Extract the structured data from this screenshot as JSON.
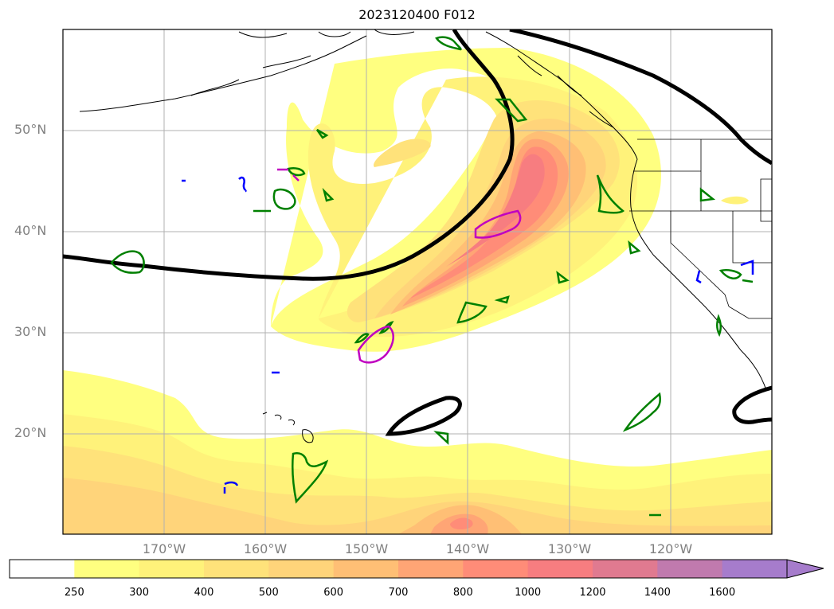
{
  "title": "2023120400 F012",
  "lat_labels": [
    "50°N",
    "40°N",
    "30°N",
    "20°N"
  ],
  "lon_labels": [
    "170°W",
    "160°W",
    "150°W",
    "140°W",
    "130°W",
    "120°W"
  ],
  "map_extent": {
    "lon_min": -180,
    "lon_max": -110,
    "lat_min": 10,
    "lat_max": 60
  },
  "colorbar": {
    "ticks": [
      "250",
      "300",
      "400",
      "500",
      "600",
      "700",
      "800",
      "1000",
      "1200",
      "1400",
      "1600"
    ],
    "colors": [
      "#ffffff",
      "#ffff80",
      "#fff27a",
      "#ffe27a",
      "#ffd47a",
      "#ffbf75",
      "#ffa575",
      "#ff8c78",
      "#f77d80",
      "#e07a90",
      "#c07aae",
      "#a67ccc"
    ],
    "extend": "max"
  },
  "colors": {
    "contour_black": "#000000",
    "contour_green": "#008000",
    "contour_magenta": "#c000c0",
    "contour_blue": "#0000ff",
    "grid": "#b0b0b0"
  }
}
